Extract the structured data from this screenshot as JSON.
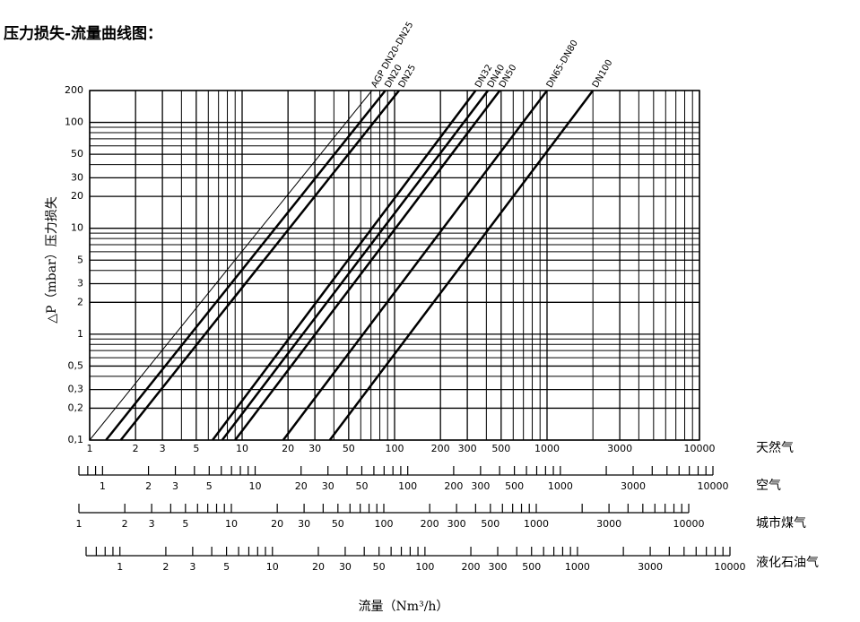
{
  "chart_data": {
    "type": "line",
    "title": "压力损失-流量曲线图：",
    "xlabel": "流量（Nm³/h）",
    "ylabel": "△P（mbar）压力损失",
    "xscale": "log",
    "yscale": "log",
    "grid": true,
    "minor_grid": true,
    "x_axis_name": "天然气",
    "xlim": [
      1,
      10000
    ],
    "ylim": [
      0.1,
      200
    ],
    "xticks": [
      1,
      2,
      3,
      5,
      10,
      20,
      30,
      50,
      100,
      200,
      300,
      500,
      1000,
      3000,
      10000
    ],
    "yticks": [
      {
        "value": 0.1,
        "label": "0,1"
      },
      {
        "value": 0.2,
        "label": "0,2"
      },
      {
        "value": 0.3,
        "label": "0,3"
      },
      {
        "value": 0.5,
        "label": "0,5"
      },
      1,
      2,
      3,
      5,
      10,
      20,
      30,
      50,
      100,
      200
    ],
    "series": [
      {
        "name": "AGP DN20-DN25",
        "color": "#000000",
        "line_width": 1,
        "x": [
          1,
          71
        ],
        "values": [
          0.1,
          200
        ]
      },
      {
        "name": "DN20",
        "color": "#000000",
        "line_width": 2.5,
        "x": [
          1.28,
          87
        ],
        "values": [
          0.1,
          200
        ]
      },
      {
        "name": "DN25",
        "color": "#000000",
        "line_width": 2.5,
        "x": [
          1.6,
          107
        ],
        "values": [
          0.1,
          200
        ]
      },
      {
        "name": "DN32",
        "color": "#000000",
        "line_width": 2.5,
        "x": [
          6.4,
          340
        ],
        "values": [
          0.1,
          200
        ]
      },
      {
        "name": "DN40",
        "color": "#000000",
        "line_width": 2.5,
        "x": [
          7.4,
          410
        ],
        "values": [
          0.1,
          200
        ]
      },
      {
        "name": "DN50",
        "color": "#000000",
        "line_width": 2.5,
        "x": [
          9,
          490
        ],
        "values": [
          0.1,
          200
        ]
      },
      {
        "name": "DN65-DN80",
        "color": "#000000",
        "line_width": 2.5,
        "x": [
          18.6,
          1000
        ],
        "values": [
          0.1,
          200
        ]
      },
      {
        "name": "DN100",
        "color": "#000000",
        "line_width": 2.5,
        "x": [
          37.6,
          2000
        ],
        "values": [
          0.1,
          200
        ]
      }
    ],
    "extra_axes": [
      {
        "name": "空气",
        "xlim": [
          0.7,
          10000
        ],
        "xticks": [
          1,
          2,
          3,
          5,
          10,
          20,
          30,
          50,
          100,
          200,
          300,
          500,
          1000,
          3000,
          10000
        ]
      },
      {
        "name": "城市煤气",
        "xlim": [
          1,
          10000
        ],
        "xticks": [
          1,
          2,
          3,
          5,
          10,
          20,
          30,
          50,
          100,
          200,
          300,
          500,
          1000,
          3000,
          10000
        ]
      },
      {
        "name": "液化石油气",
        "xlim": [
          0.6,
          10000
        ],
        "xticks": [
          1,
          2,
          3,
          5,
          10,
          20,
          30,
          50,
          100,
          200,
          300,
          500,
          1000,
          3000,
          10000
        ]
      }
    ]
  }
}
